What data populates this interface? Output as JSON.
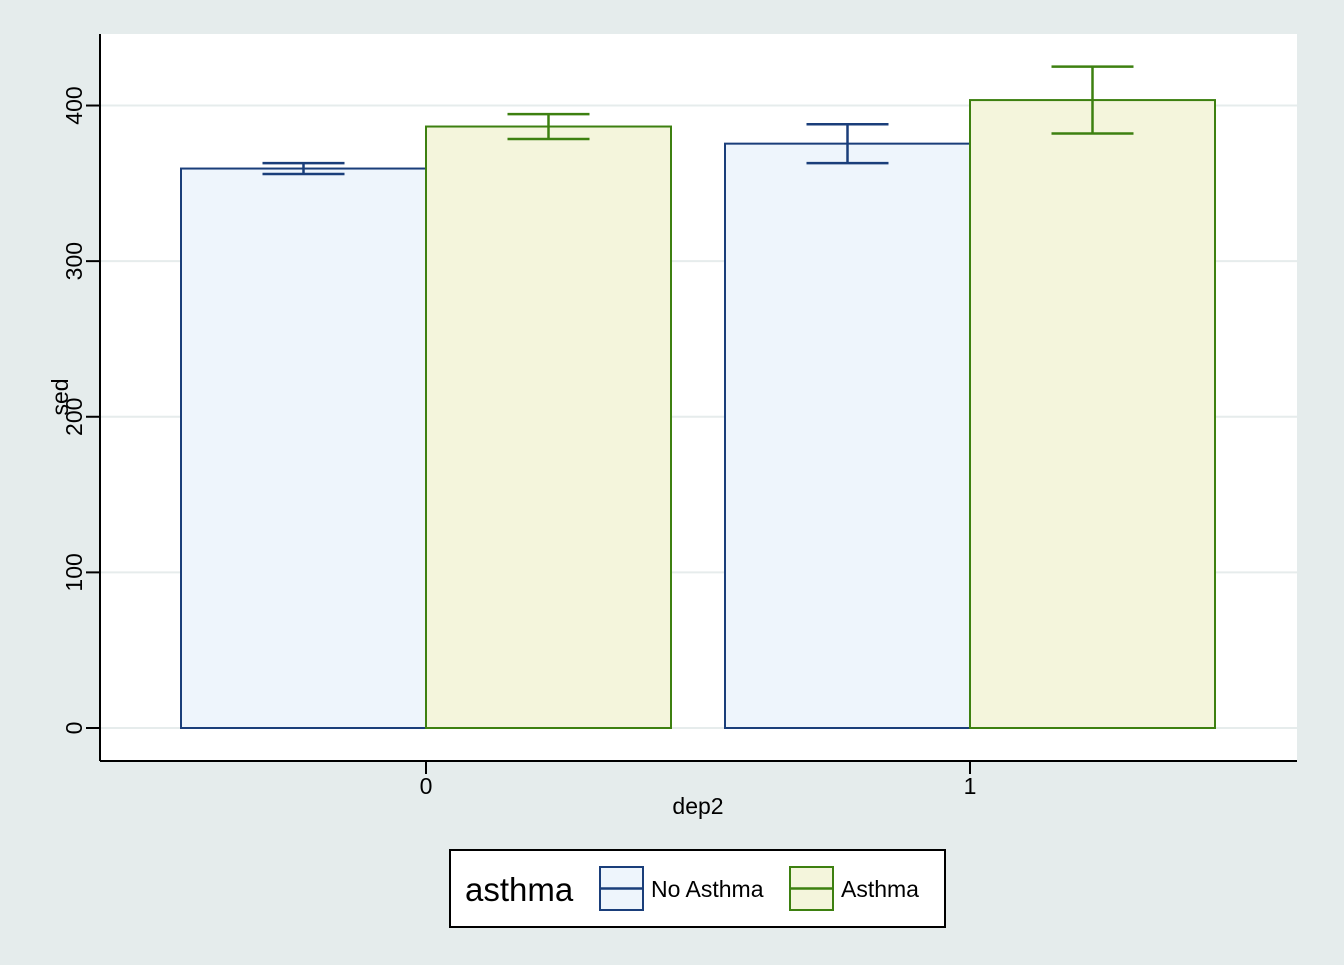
{
  "chart_data": {
    "type": "bar",
    "xlabel": "dep2",
    "ylabel": "sed",
    "ylim": [
      -20,
      435
    ],
    "yticks": [
      0,
      100,
      200,
      300,
      400
    ],
    "categories": [
      "0",
      "1"
    ],
    "grid": true,
    "legend": {
      "title": "asthma",
      "position": "bottom-center"
    },
    "series": [
      {
        "name": "No Asthma",
        "color": "#1a3e7a",
        "fill": "#eef5fc",
        "values": [
          359.5,
          375.5
        ],
        "errors": [
          [
            356,
            363
          ],
          [
            363,
            388
          ]
        ]
      },
      {
        "name": "Asthma",
        "color": "#3d8010",
        "fill": "#f4f5dc",
        "values": [
          386.5,
          403.5
        ],
        "errors": [
          [
            378.5,
            394.5
          ],
          [
            382,
            425
          ]
        ]
      }
    ]
  }
}
